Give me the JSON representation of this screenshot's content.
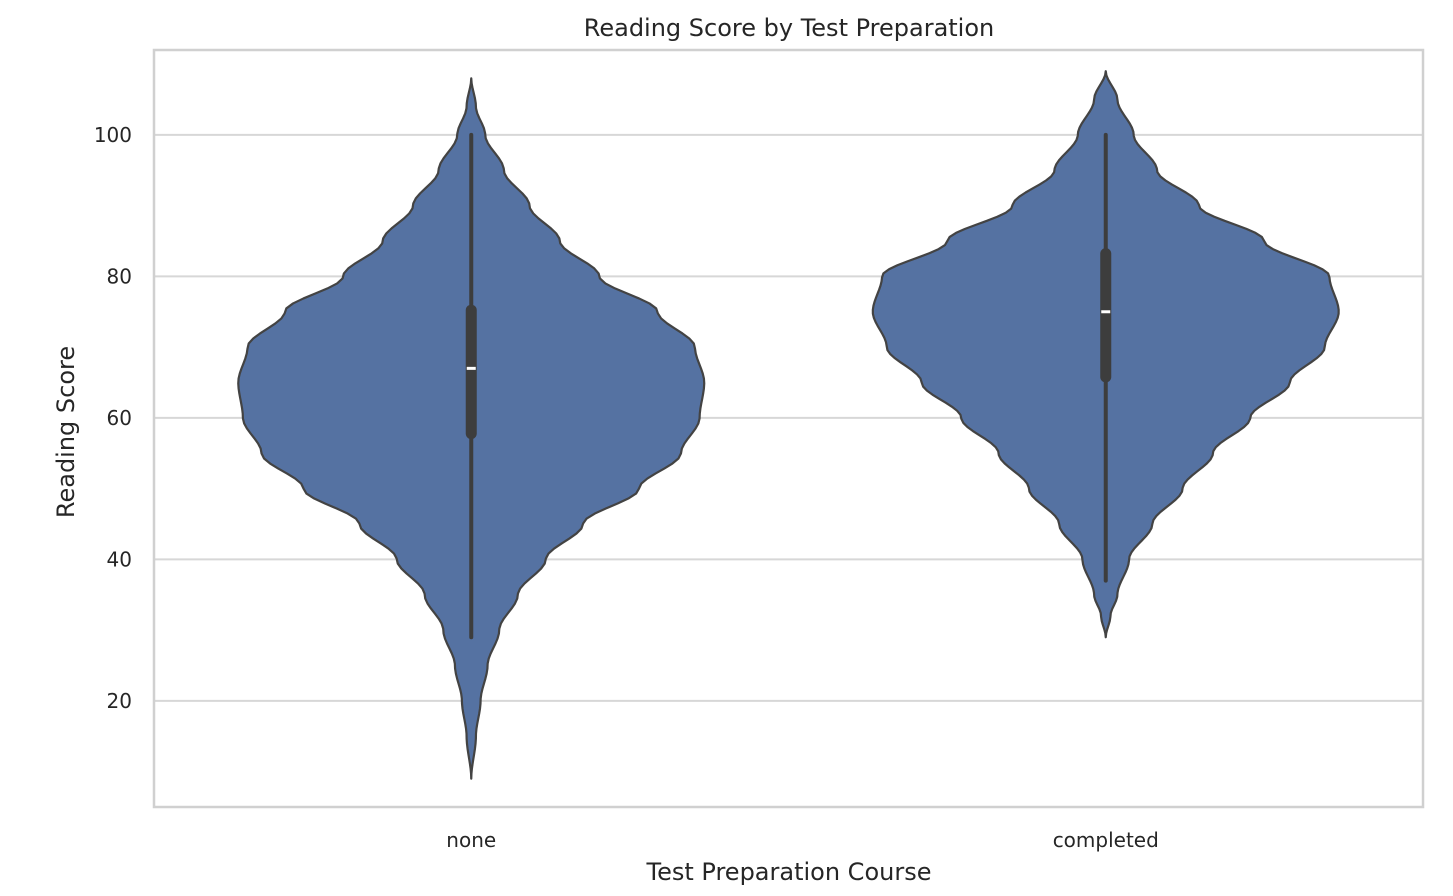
{
  "chart_data": {
    "type": "violin",
    "title": "Reading Score by Test Preparation",
    "xlabel": "Test Preparation Course",
    "ylabel": "Reading Score",
    "categories": [
      "none",
      "completed"
    ],
    "ylim": [
      5,
      112
    ],
    "yticks": [
      20,
      40,
      60,
      80,
      100
    ],
    "grid": true,
    "legend": "none",
    "colors": {
      "violin_fill": "#5572a2",
      "violin_edge": "#434343",
      "box": "#3d3d3d",
      "median": "#ffffff",
      "grid": "#d7d7d7",
      "frame": "#d0d0d0"
    },
    "violins": [
      {
        "category": "none",
        "min": 29,
        "q1": 57,
        "median": 67,
        "q3": 76,
        "max": 100,
        "density_extent": [
          9,
          108
        ],
        "profile": [
          [
            9,
            0.0
          ],
          [
            15,
            0.02
          ],
          [
            20,
            0.04
          ],
          [
            25,
            0.07
          ],
          [
            30,
            0.12
          ],
          [
            35,
            0.2
          ],
          [
            40,
            0.32
          ],
          [
            45,
            0.48
          ],
          [
            50,
            0.72
          ],
          [
            55,
            0.9
          ],
          [
            60,
            0.98
          ],
          [
            65,
            1.0
          ],
          [
            70,
            0.96
          ],
          [
            75,
            0.8
          ],
          [
            80,
            0.55
          ],
          [
            85,
            0.38
          ],
          [
            90,
            0.25
          ],
          [
            95,
            0.14
          ],
          [
            100,
            0.06
          ],
          [
            104,
            0.02
          ],
          [
            108,
            0.0
          ]
        ]
      },
      {
        "category": "completed",
        "min": 37,
        "q1": 65,
        "median": 75,
        "q3": 84,
        "max": 100,
        "density_extent": [
          29,
          109
        ],
        "profile": [
          [
            29,
            0.0
          ],
          [
            32,
            0.02
          ],
          [
            35,
            0.05
          ],
          [
            40,
            0.1
          ],
          [
            45,
            0.2
          ],
          [
            50,
            0.33
          ],
          [
            55,
            0.46
          ],
          [
            60,
            0.62
          ],
          [
            65,
            0.79
          ],
          [
            70,
            0.94
          ],
          [
            75,
            1.0
          ],
          [
            80,
            0.96
          ],
          [
            85,
            0.68
          ],
          [
            90,
            0.4
          ],
          [
            95,
            0.22
          ],
          [
            100,
            0.12
          ],
          [
            105,
            0.05
          ],
          [
            109,
            0.0
          ]
        ]
      }
    ]
  }
}
